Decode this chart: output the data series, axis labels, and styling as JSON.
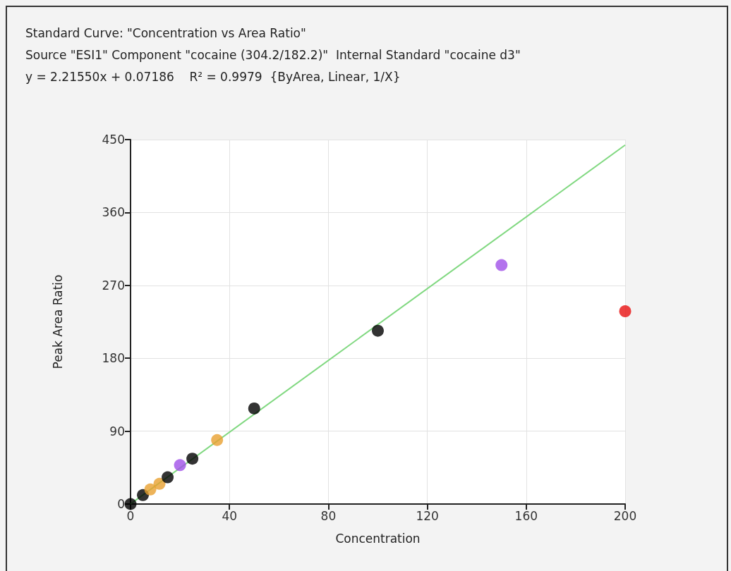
{
  "chart_data": {
    "type": "scatter",
    "title": "Standard Curve: \"Concentration vs Area Ratio\"",
    "subtitle": "Source \"ESI1\" Component \"cocaine (304.2/182.2)\"  Internal Standard \"cocaine d3\"",
    "annotations": [
      "y = 2.21550x + 0.07186    R² = 0.9979  {ByArea, Linear, 1/X}"
    ],
    "xlabel": "Concentration",
    "ylabel": "Peak Area Ratio",
    "series": [
      {
        "x": [
          0,
          5,
          8,
          11.7,
          15,
          20,
          25,
          35,
          50,
          100,
          150,
          200
        ],
        "values": [
          0,
          11,
          18,
          25,
          33,
          48,
          56,
          79,
          118,
          214,
          295,
          238
        ],
        "colors": [
          "#000000",
          "#000000",
          "#e8a030",
          "#e8a030",
          "#000000",
          "#a050e8",
          "#000000",
          "#e8a030",
          "#000000",
          "#000000",
          "#a050e8",
          "#e81010"
        ]
      },
      {
        "type": "line",
        "x": [
          0,
          200
        ],
        "values": [
          0.1,
          443.2
        ],
        "color": "#80d880",
        "marker": "none"
      }
    ],
    "xlim": [
      0,
      200
    ],
    "xticks": [
      0,
      40,
      80,
      120,
      160,
      200
    ],
    "ylim": [
      0,
      450
    ],
    "yticks": [
      0,
      90,
      180,
      270,
      360,
      450
    ],
    "grid": true,
    "marker": "circle"
  }
}
